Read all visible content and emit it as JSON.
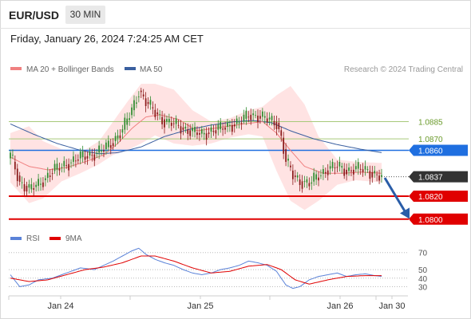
{
  "header": {
    "symbol": "EUR/USD",
    "timeframe": "30 MIN",
    "datetime": "Friday, January 26, 2024 7:24:25 AM CET"
  },
  "colors": {
    "ma20": "#f08080",
    "ma50": "#3a5f9f",
    "bollinger_fill": "#ffd9d9",
    "candle_up": "#2e8b2e",
    "candle_down": "#8b1a1a",
    "pivot": "#a8c97a",
    "resistance_blue": "#1f6fe0",
    "support_red": "#e00000",
    "current_price": "#333333",
    "forecast_arrow": "#2a5da8",
    "rsi": "#5a82d8",
    "rsi_ma": "#e00000"
  },
  "chart_data": [
    {
      "type": "candlestick",
      "legend_placement": "top-left",
      "legend": [
        {
          "name": "MA 20 + Bollinger Bands",
          "color": "#f08080"
        },
        {
          "name": "MA 50",
          "color": "#3a5f9f"
        }
      ],
      "watermark": "Research © 2024 Trading Central",
      "x_ticks": [
        "Jan 24",
        "Jan 25",
        "Jan 26",
        "Jan 30"
      ],
      "ylim": [
        1.0795,
        1.0925
      ],
      "levels": [
        {
          "label": "1.0885",
          "value": 1.0885,
          "kind": "pivot"
        },
        {
          "label": "1.0870",
          "value": 1.087,
          "kind": "pivot"
        },
        {
          "label": "1.0860",
          "value": 1.086,
          "kind": "resistance"
        },
        {
          "label": "1.0837",
          "value": 1.0837,
          "kind": "current"
        },
        {
          "label": "1.0820",
          "value": 1.082,
          "kind": "support"
        },
        {
          "label": "1.0800",
          "value": 1.08,
          "kind": "support"
        }
      ],
      "forecast": {
        "from": 1.0836,
        "to": 1.0801
      },
      "candle_anchors": [
        [
          0,
          1.0856
        ],
        [
          4,
          1.0832
        ],
        [
          8,
          1.0826
        ],
        [
          12,
          1.083
        ],
        [
          18,
          1.0842
        ],
        [
          24,
          1.0848
        ],
        [
          30,
          1.0854
        ],
        [
          36,
          1.0857
        ],
        [
          40,
          1.0861
        ],
        [
          44,
          1.0868
        ],
        [
          48,
          1.0878
        ],
        [
          52,
          1.0895
        ],
        [
          55,
          1.0912
        ],
        [
          58,
          1.0902
        ],
        [
          62,
          1.0893
        ],
        [
          66,
          1.0885
        ],
        [
          70,
          1.0883
        ],
        [
          74,
          1.0879
        ],
        [
          78,
          1.0876
        ],
        [
          82,
          1.0874
        ],
        [
          86,
          1.0877
        ],
        [
          90,
          1.0879
        ],
        [
          94,
          1.0882
        ],
        [
          98,
          1.0884
        ],
        [
          102,
          1.0891
        ],
        [
          106,
          1.089
        ],
        [
          110,
          1.0887
        ],
        [
          114,
          1.0884
        ],
        [
          116,
          1.0871
        ],
        [
          118,
          1.0851
        ],
        [
          121,
          1.0838
        ],
        [
          124,
          1.0833
        ],
        [
          128,
          1.0831
        ],
        [
          132,
          1.0838
        ],
        [
          136,
          1.0844
        ],
        [
          140,
          1.0846
        ],
        [
          144,
          1.0842
        ],
        [
          148,
          1.0844
        ],
        [
          152,
          1.0843
        ],
        [
          156,
          1.0839
        ],
        [
          159,
          1.0836
        ]
      ],
      "bollinger_anchors": [
        [
          0,
          1.0875,
          1.0832
        ],
        [
          8,
          1.0881,
          1.0814
        ],
        [
          14,
          1.0868,
          1.0818
        ],
        [
          22,
          1.0861,
          1.0833
        ],
        [
          30,
          1.0858,
          1.084
        ],
        [
          38,
          1.0868,
          1.0848
        ],
        [
          44,
          1.0885,
          1.0856
        ],
        [
          50,
          1.0902,
          1.086
        ],
        [
          56,
          1.0918,
          1.0866
        ],
        [
          62,
          1.0918,
          1.0873
        ],
        [
          70,
          1.0913,
          1.0866
        ],
        [
          78,
          1.0895,
          1.0864
        ],
        [
          86,
          1.0885,
          1.0866
        ],
        [
          94,
          1.0888,
          1.0871
        ],
        [
          102,
          1.0895,
          1.0874
        ],
        [
          108,
          1.0898,
          1.0872
        ],
        [
          114,
          1.0908,
          1.0842
        ],
        [
          120,
          1.0916,
          1.0816
        ],
        [
          126,
          1.09,
          1.0808
        ],
        [
          132,
          1.0872,
          1.0816
        ],
        [
          140,
          1.0852,
          1.083
        ],
        [
          148,
          1.085,
          1.0834
        ],
        [
          159,
          1.0849,
          1.0832
        ]
      ],
      "ma20_anchors": [
        [
          0,
          1.0854
        ],
        [
          8,
          1.0846
        ],
        [
          16,
          1.0843
        ],
        [
          24,
          1.0845
        ],
        [
          32,
          1.085
        ],
        [
          40,
          1.0856
        ],
        [
          46,
          1.0866
        ],
        [
          52,
          1.0879
        ],
        [
          58,
          1.0889
        ],
        [
          64,
          1.0891
        ],
        [
          72,
          1.0887
        ],
        [
          80,
          1.0877
        ],
        [
          90,
          1.088
        ],
        [
          100,
          1.0883
        ],
        [
          108,
          1.0885
        ],
        [
          114,
          1.0875
        ],
        [
          120,
          1.086
        ],
        [
          126,
          1.0846
        ],
        [
          134,
          1.084
        ],
        [
          142,
          1.084
        ],
        [
          150,
          1.0841
        ],
        [
          159,
          1.084
        ]
      ],
      "ma50_anchors": [
        [
          0,
          1.0883
        ],
        [
          10,
          1.0874
        ],
        [
          20,
          1.0866
        ],
        [
          30,
          1.086
        ],
        [
          38,
          1.0857
        ],
        [
          46,
          1.0858
        ],
        [
          56,
          1.0863
        ],
        [
          66,
          1.0872
        ],
        [
          76,
          1.0878
        ],
        [
          86,
          1.0882
        ],
        [
          96,
          1.0885
        ],
        [
          104,
          1.0886
        ],
        [
          112,
          1.0884
        ],
        [
          120,
          1.0877
        ],
        [
          130,
          1.087
        ],
        [
          140,
          1.0865
        ],
        [
          150,
          1.0861
        ],
        [
          159,
          1.0858
        ]
      ]
    },
    {
      "type": "line",
      "legend_placement": "top-left",
      "legend": [
        {
          "name": "RSI",
          "color": "#5a82d8"
        },
        {
          "name": "9MA",
          "color": "#e00000"
        }
      ],
      "ylim": [
        22,
        80
      ],
      "y_ticks": [
        "70",
        "50",
        "40",
        "30"
      ],
      "y_tick_values": [
        70,
        50,
        40,
        30
      ],
      "x_ticks": [
        "Jan 24",
        "Jan 25",
        "Jan 26",
        "Jan 30"
      ],
      "rsi_anchors": [
        [
          0,
          44
        ],
        [
          4,
          30
        ],
        [
          8,
          32
        ],
        [
          12,
          38
        ],
        [
          18,
          40
        ],
        [
          24,
          46
        ],
        [
          30,
          52
        ],
        [
          36,
          50
        ],
        [
          40,
          55
        ],
        [
          44,
          60
        ],
        [
          48,
          66
        ],
        [
          52,
          72
        ],
        [
          55,
          75
        ],
        [
          58,
          68
        ],
        [
          62,
          62
        ],
        [
          66,
          58
        ],
        [
          70,
          55
        ],
        [
          74,
          50
        ],
        [
          78,
          46
        ],
        [
          82,
          44
        ],
        [
          86,
          46
        ],
        [
          90,
          50
        ],
        [
          94,
          52
        ],
        [
          98,
          55
        ],
        [
          102,
          60
        ],
        [
          106,
          58
        ],
        [
          110,
          55
        ],
        [
          114,
          48
        ],
        [
          116,
          40
        ],
        [
          118,
          32
        ],
        [
          121,
          28
        ],
        [
          124,
          30
        ],
        [
          128,
          38
        ],
        [
          132,
          42
        ],
        [
          136,
          44
        ],
        [
          140,
          46
        ],
        [
          144,
          42
        ],
        [
          148,
          44
        ],
        [
          152,
          45
        ],
        [
          156,
          43
        ],
        [
          159,
          42
        ]
      ],
      "ma9_anchors": [
        [
          0,
          40
        ],
        [
          8,
          36
        ],
        [
          16,
          38
        ],
        [
          24,
          44
        ],
        [
          32,
          50
        ],
        [
          40,
          53
        ],
        [
          48,
          58
        ],
        [
          56,
          66
        ],
        [
          62,
          66
        ],
        [
          70,
          60
        ],
        [
          78,
          52
        ],
        [
          86,
          46
        ],
        [
          94,
          48
        ],
        [
          102,
          54
        ],
        [
          110,
          56
        ],
        [
          116,
          50
        ],
        [
          122,
          38
        ],
        [
          128,
          33
        ],
        [
          136,
          38
        ],
        [
          144,
          42
        ],
        [
          152,
          43
        ],
        [
          159,
          43
        ]
      ]
    }
  ]
}
